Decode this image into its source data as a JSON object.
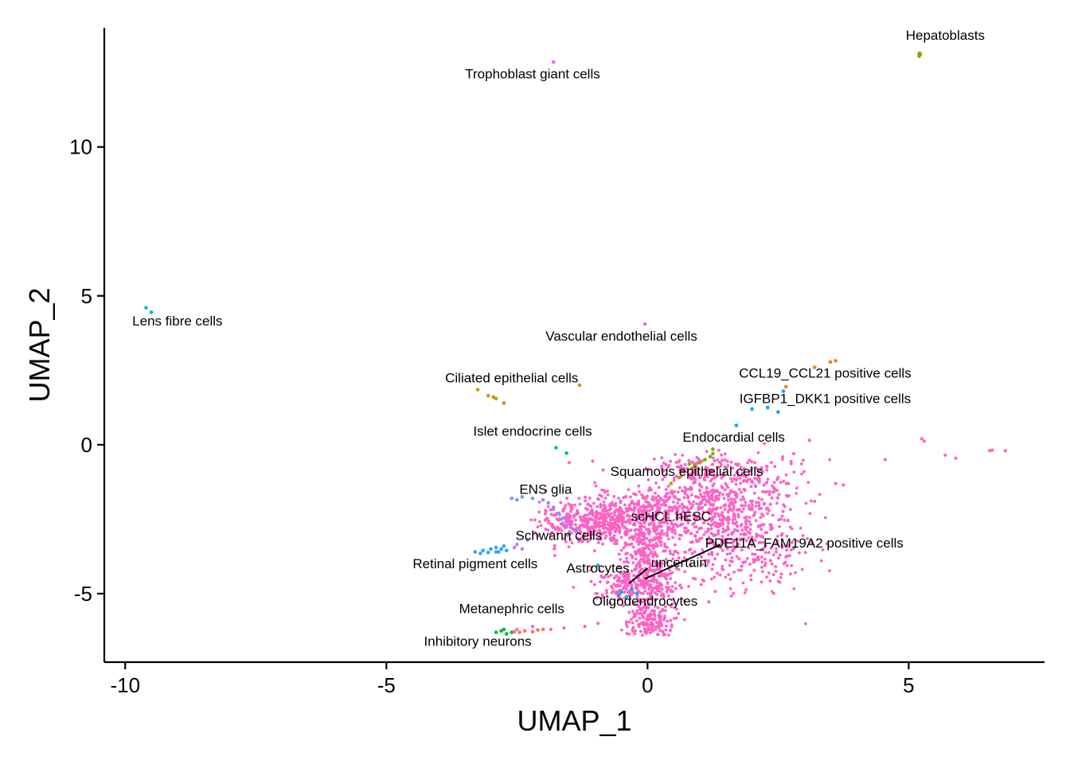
{
  "chart_data": {
    "type": "scatter",
    "title": "",
    "xlabel": "UMAP_1",
    "ylabel": "UMAP_2",
    "xlim": [
      -10.4,
      7.6
    ],
    "ylim": [
      -7.3,
      14.0
    ],
    "xticks": [
      -10,
      -5,
      0,
      5
    ],
    "yticks": [
      -5,
      0,
      5,
      10
    ],
    "xtick_labels": [
      "-10",
      "-5",
      "0",
      "5"
    ],
    "ytick_labels": [
      "-5",
      "0",
      "5",
      "10"
    ],
    "grid": false,
    "legend": "none",
    "clusters": [
      {
        "label": "Hepatoblasts",
        "color": "#7CAE00",
        "label_pos": [
          5.7,
          13.6
        ],
        "points": [
          [
            5.2,
            13.1
          ],
          [
            5.21,
            13.15
          ],
          [
            5.2,
            13.05
          ],
          [
            5.22,
            13.1
          ]
        ]
      },
      {
        "label": "Trophoblast giant cells",
        "color": "#E76BF3",
        "label_pos": [
          -2.2,
          12.3
        ],
        "points": [
          [
            -1.8,
            12.85
          ]
        ]
      },
      {
        "label": "Lens fibre cells",
        "color": "#00BFC4",
        "label_pos": [
          -9.0,
          4.0
        ],
        "points": [
          [
            -9.6,
            4.6
          ],
          [
            -9.5,
            4.45
          ]
        ]
      },
      {
        "label": "Vascular endothelial cells",
        "color": "#F564E3",
        "label_pos": [
          -0.5,
          3.5
        ],
        "points": [
          [
            -0.05,
            4.05
          ]
        ]
      },
      {
        "label": "Ciliated epithelial cells",
        "color": "#CD9600",
        "label_pos": [
          -2.6,
          2.1
        ],
        "points": [
          [
            -3.25,
            1.85
          ],
          [
            -3.05,
            1.65
          ],
          [
            -2.95,
            1.6
          ],
          [
            -2.9,
            1.55
          ],
          [
            -2.75,
            1.4
          ],
          [
            -1.3,
            2.0
          ]
        ]
      },
      {
        "label": "CCL19_CCL21 positive cells",
        "color": "#E68613",
        "label_pos": [
          3.4,
          2.25
        ],
        "points": [
          [
            3.2,
            2.6
          ],
          [
            3.5,
            2.78
          ],
          [
            3.6,
            2.82
          ],
          [
            2.65,
            1.95
          ]
        ]
      },
      {
        "label": "IGFBP1_DKK1 positive cells",
        "color": "#00A5FF",
        "label_pos": [
          3.4,
          1.4
        ],
        "points": [
          [
            2.6,
            1.8
          ],
          [
            2.3,
            1.25
          ],
          [
            2.5,
            1.1
          ],
          [
            2.0,
            1.2
          ],
          [
            1.7,
            0.65
          ]
        ]
      },
      {
        "label": "Islet endocrine cells",
        "color": "#00C08B",
        "label_pos": [
          -2.2,
          0.3
        ],
        "points": [
          [
            -1.75,
            -0.1
          ],
          [
            -1.55,
            -0.28
          ]
        ]
      },
      {
        "label": "Endocardial cells",
        "color": "#7CAE00",
        "label_pos": [
          1.65,
          0.1
        ],
        "points": [
          [
            1.25,
            -0.15
          ],
          [
            1.25,
            -0.3
          ],
          [
            1.2,
            -0.4
          ],
          [
            1.1,
            -0.5
          ],
          [
            0.9,
            -0.7
          ],
          [
            0.8,
            -0.65
          ]
        ]
      },
      {
        "label": "Squamous epithelial cells",
        "color": "#ABA300",
        "label_pos": [
          0.75,
          -1.05
        ],
        "points": [
          [
            0.45,
            -1.3
          ],
          [
            0.6,
            -1.1
          ],
          [
            0.7,
            -0.9
          ],
          [
            0.85,
            -0.8
          ],
          [
            1.0,
            -0.6
          ]
        ]
      },
      {
        "label": "ENS glia",
        "color": "#8494FF",
        "label_pos": [
          -1.95,
          -1.65
        ],
        "points": [
          [
            -2.6,
            -1.8
          ],
          [
            -2.4,
            -1.75
          ],
          [
            -2.2,
            -1.8
          ],
          [
            -2.0,
            -1.85
          ],
          [
            -1.9,
            -1.95
          ],
          [
            -1.8,
            -2.1
          ],
          [
            -1.7,
            -2.3
          ],
          [
            -1.65,
            -2.5
          ],
          [
            -1.55,
            -2.7
          ],
          [
            -1.45,
            -2.8
          ],
          [
            -1.35,
            -2.9
          ],
          [
            -1.5,
            -3.0
          ],
          [
            -2.5,
            -1.85
          ],
          [
            -1.6,
            -2.45
          ]
        ]
      },
      {
        "label": "scHCL.hESC",
        "color": "#FF61C3",
        "label_pos": [
          0.45,
          -2.55
        ],
        "points": []
      },
      {
        "label": "Schwann cells",
        "color": "#C77CFF",
        "label_pos": [
          -1.7,
          -3.2
        ],
        "points": [
          [
            -2.1,
            -3.05
          ],
          [
            -2.3,
            -3.2
          ],
          [
            -2.5,
            -3.35
          ],
          [
            -2.55,
            -3.45
          ],
          [
            -2.4,
            -3.5
          ]
        ]
      },
      {
        "label": "PDE11A_FAM19A2 positive cells",
        "color": "#FF61C3",
        "label_pos": [
          3.0,
          -3.45
        ],
        "points": []
      },
      {
        "label": "Retinal pigment cells",
        "color": "#35A2FF",
        "label_pos": [
          -3.3,
          -4.15
        ],
        "points": [
          [
            -3.3,
            -3.6
          ],
          [
            -3.15,
            -3.55
          ],
          [
            -3.0,
            -3.5
          ],
          [
            -2.9,
            -3.45
          ],
          [
            -2.8,
            -3.5
          ],
          [
            -2.7,
            -3.55
          ],
          [
            -2.9,
            -3.6
          ],
          [
            -3.05,
            -3.62
          ],
          [
            -3.2,
            -3.65
          ],
          [
            -2.75,
            -3.4
          ],
          [
            -2.85,
            -3.6
          ]
        ]
      },
      {
        "label": "uncertain",
        "color": "#FF61C3",
        "label_pos": [
          0.6,
          -4.1
        ],
        "points": []
      },
      {
        "label": "Astrocytes",
        "color": "#00A9FF",
        "label_pos": [
          -0.95,
          -4.3
        ],
        "points": [
          [
            -0.55,
            -5.05
          ],
          [
            -0.5,
            -4.95
          ],
          [
            -0.3,
            -4.85
          ],
          [
            -0.95,
            -4.05
          ]
        ]
      },
      {
        "label": "Oligodendrocytes",
        "color": "#00B0F6",
        "label_pos": [
          -0.05,
          -5.4
        ],
        "points": [
          [
            -0.4,
            -5.1
          ],
          [
            -0.2,
            -5.0
          ]
        ]
      },
      {
        "label": "Metanephric cells",
        "color": "#00BA38",
        "label_pos": [
          -2.6,
          -5.65
        ],
        "points": [
          [
            -2.9,
            -6.3
          ],
          [
            -2.8,
            -6.25
          ],
          [
            -2.7,
            -6.35
          ],
          [
            -2.75,
            -6.2
          ],
          [
            -2.6,
            -6.3
          ]
        ]
      },
      {
        "label": "Inhibitory neurons",
        "color": "#F8766D",
        "label_pos": [
          -3.25,
          -6.75
        ],
        "points": [
          [
            -2.55,
            -6.28
          ],
          [
            -2.45,
            -6.3
          ],
          [
            -2.35,
            -6.25
          ],
          [
            -2.2,
            -6.28
          ],
          [
            -2.1,
            -6.22
          ],
          [
            -2.0,
            -6.2
          ]
        ]
      }
    ],
    "extra_points": [
      {
        "color": "#FF61C3",
        "points": [
          [
            5.25,
            0.2
          ],
          [
            5.3,
            0.12
          ],
          [
            5.7,
            -0.35
          ],
          [
            5.9,
            -0.45
          ],
          [
            4.55,
            -0.5
          ],
          [
            3.1,
            0.15
          ],
          [
            6.55,
            -0.2
          ],
          [
            6.6,
            -0.18
          ],
          [
            6.85,
            -0.2
          ],
          [
            2.8,
            -0.3
          ],
          [
            3.6,
            -1.3
          ],
          [
            3.75,
            -1.35
          ],
          [
            3.2,
            -1.9
          ],
          [
            -1.05,
            -0.55
          ],
          [
            -0.85,
            -0.85
          ],
          [
            -0.25,
            -1.65
          ],
          [
            -1.95,
            -1.55
          ],
          [
            -1.5,
            -0.6
          ],
          [
            -2.5,
            -6.2
          ],
          [
            -2.2,
            -6.1
          ],
          [
            -1.85,
            -6.2
          ],
          [
            -1.6,
            -6.15
          ],
          [
            -1.2,
            -6.1
          ],
          [
            -0.95,
            -6.0
          ]
        ]
      }
    ],
    "leader_lines": [
      {
        "from": [
          0.0,
          -4.15
        ],
        "to": [
          -0.35,
          -4.65
        ]
      },
      {
        "from": [
          -0.05,
          -4.5
        ],
        "to": [
          1.4,
          -3.35
        ]
      }
    ]
  }
}
